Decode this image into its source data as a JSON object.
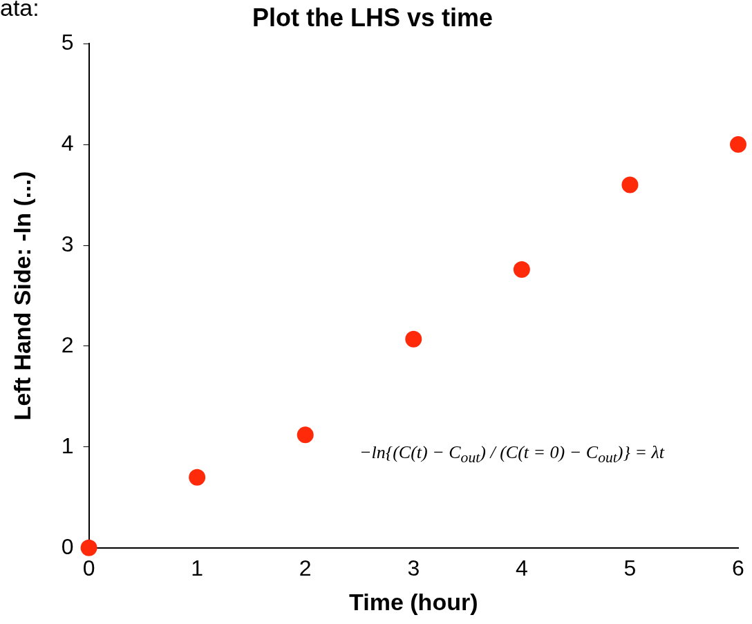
{
  "chart_data": {
    "type": "scatter",
    "title": "Plot the LHS vs time",
    "xlabel": "Time (hour)",
    "ylabel": "Left Hand Side: -ln (...)",
    "x": [
      0,
      1,
      2,
      3,
      4,
      5,
      6
    ],
    "series": [
      {
        "color": "#ff2a0a",
        "values": [
          0,
          0.7,
          1.12,
          2.07,
          2.76,
          3.6,
          4.0
        ]
      }
    ],
    "xlim": [
      0,
      6
    ],
    "xticks": [
      0,
      1,
      2,
      3,
      4,
      5,
      6
    ],
    "ylim": [
      0,
      5
    ],
    "yticks": [
      0,
      1,
      2,
      3,
      4,
      5
    ],
    "grid": false,
    "legend": false,
    "marker": "circle",
    "annotations": [
      "ata:",
      "−ln{(C(t) − C$_{out}$) / (C(t = 0) − C$_{out}$)} = λt"
    ]
  }
}
